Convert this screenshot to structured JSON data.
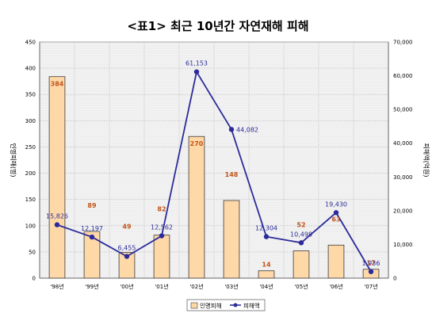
{
  "chart_data": {
    "type": "bar",
    "title": "<표1> 최근 10년간 자연재해 피해",
    "categories": [
      "'98년",
      "'99년",
      "'00년",
      "'01년",
      "'02년",
      "'03년",
      "'04년",
      "'05년",
      "'06년",
      "'07년"
    ],
    "ylabel_left": "인명피해(명)",
    "ylabel_right": "피해액(억원)",
    "ylim_left": [
      0,
      450
    ],
    "ylim_right": [
      0,
      70000
    ],
    "yticks_left": [
      "0",
      "50",
      "100",
      "150",
      "200",
      "250",
      "300",
      "350",
      "400",
      "450"
    ],
    "yticks_right": [
      "0",
      "10,000",
      "20,000",
      "30,000",
      "40,000",
      "50,000",
      "60,000",
      "70,000"
    ],
    "grid": true,
    "legend_position": "bottom",
    "series": [
      {
        "name": "인명피해",
        "type": "bar",
        "axis": "left",
        "color": "#ffd8a8",
        "values": [
          384,
          89,
          49,
          82,
          270,
          148,
          14,
          52,
          63,
          17
        ],
        "labels": [
          "384",
          "89",
          "49",
          "82",
          "270",
          "148",
          "14",
          "52",
          "63",
          "17"
        ]
      },
      {
        "name": "피해액",
        "type": "line",
        "axis": "right",
        "color": "#2b2b9a",
        "values": [
          15826,
          12197,
          6455,
          12562,
          61153,
          44082,
          12304,
          10498,
          19430,
          1936
        ],
        "labels": [
          "15,826",
          "12,197",
          "6,455",
          "12,562",
          "61,153",
          "44,082",
          "12,304",
          "10,498",
          "19,430",
          "1,936"
        ]
      }
    ]
  }
}
